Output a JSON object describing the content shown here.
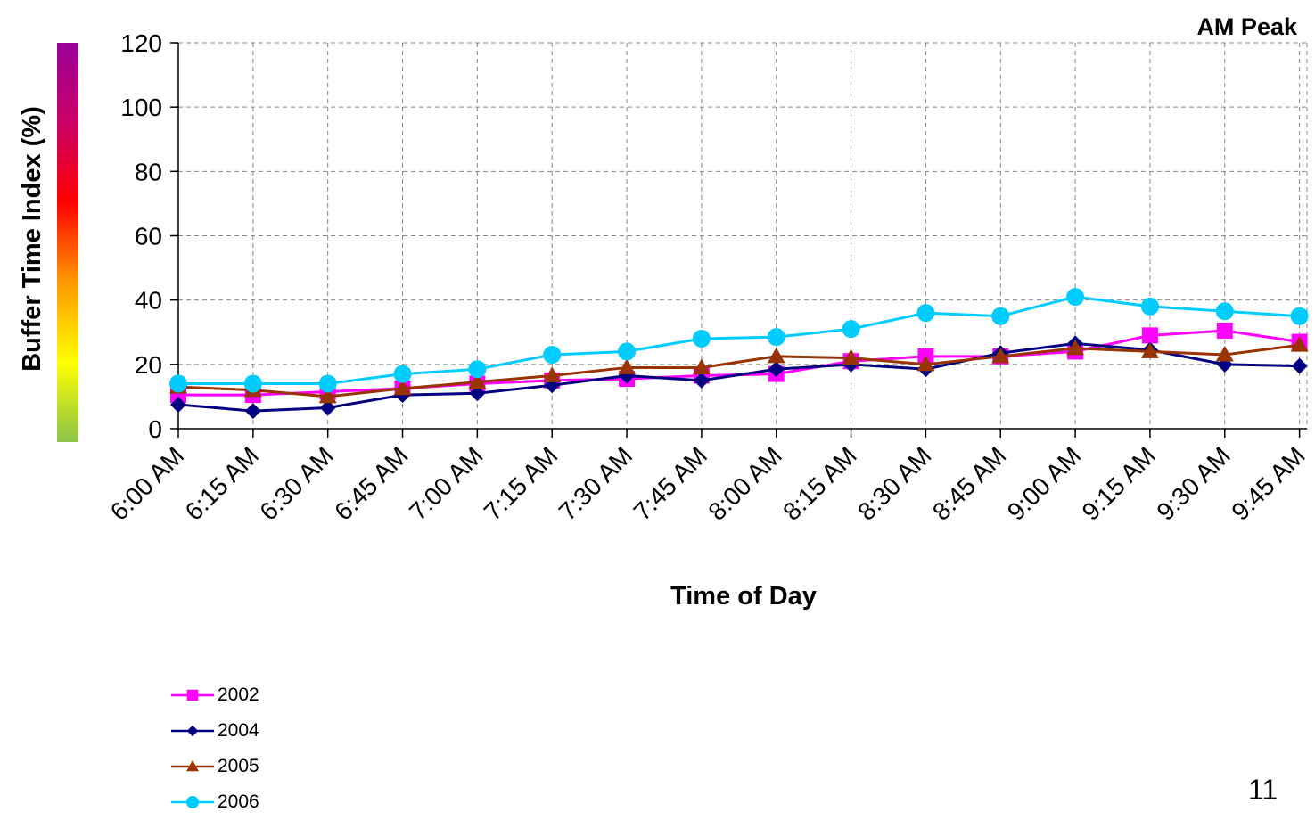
{
  "chart_data": {
    "type": "line",
    "title": "AM Peak",
    "xlabel": "Time of Day",
    "ylabel": "Buffer Time Index (%)",
    "ylim": [
      0,
      120
    ],
    "yticks": [
      0,
      20,
      40,
      60,
      80,
      100,
      120
    ],
    "grid": true,
    "legend_position": "bottom-left",
    "categories": [
      "6:00 AM",
      "6:15 AM",
      "6:30 AM",
      "6:45 AM",
      "7:00 AM",
      "7:15 AM",
      "7:30 AM",
      "7:45 AM",
      "8:00 AM",
      "8:15 AM",
      "8:30 AM",
      "8:45 AM",
      "9:00 AM",
      "9:15 AM",
      "9:30 AM",
      "9:45 AM"
    ],
    "series": [
      {
        "name": "2002",
        "color": "#ff00ff",
        "marker": "square",
        "values": [
          10.5,
          10.5,
          11.5,
          12.5,
          14,
          15,
          15.5,
          16.5,
          17,
          21,
          22.5,
          22.5,
          24,
          29,
          30.5,
          27
        ]
      },
      {
        "name": "2004",
        "color": "#000080",
        "marker": "diamond",
        "values": [
          7.5,
          5.5,
          6.5,
          10.5,
          11,
          13.5,
          16.5,
          15,
          18.5,
          20,
          18.5,
          23.5,
          26.5,
          24.5,
          20,
          19.5
        ]
      },
      {
        "name": "2005",
        "color": "#993300",
        "marker": "triangle",
        "values": [
          13,
          12,
          10,
          12.5,
          14.5,
          16.5,
          19,
          19,
          22.5,
          22,
          20,
          22.5,
          25,
          24,
          23,
          26
        ]
      },
      {
        "name": "2006",
        "color": "#00ccff",
        "marker": "circle",
        "values": [
          14,
          14,
          14,
          17,
          18.5,
          23,
          24,
          28,
          28.5,
          31,
          36,
          35,
          41,
          38,
          36.5,
          35
        ]
      }
    ],
    "color_scale_bar": [
      "#8bc34a",
      "#ffff00",
      "#ff9900",
      "#ff0000",
      "#cc0066",
      "#990099"
    ]
  },
  "page_number": "11"
}
